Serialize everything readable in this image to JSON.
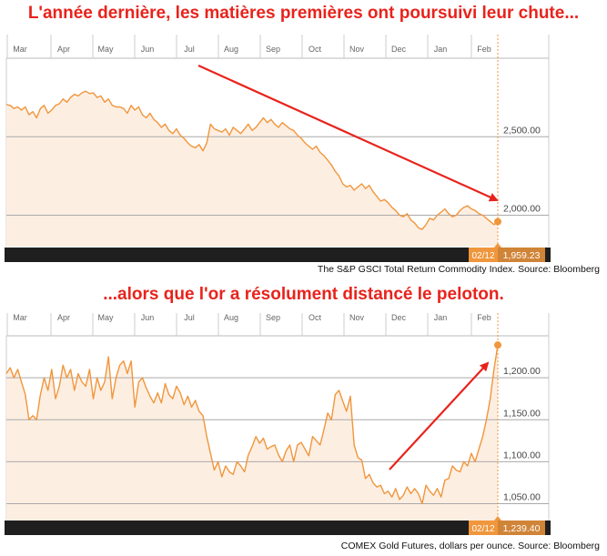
{
  "headline_top": "L'année dernière, les matières premières ont poursuivi leur chute...",
  "headline_bottom": "...alors que l'or a résolument distancé le peloton.",
  "colors": {
    "headline": "#e8231c",
    "line": "#f0963c",
    "fill": "#fdeee2",
    "arrow": "#e8231c",
    "bar": "#1f1f1f",
    "badge": "#f0963c"
  },
  "chart_data": [
    {
      "type": "area",
      "source": "The S&P GSCI Total Return Commodity Index. Source: Bloomberg",
      "x_ticks": [
        "Mar",
        "Apr",
        "May",
        "Jun",
        "Jul",
        "Aug",
        "Sep",
        "Oct",
        "Nov",
        "Dec",
        "Jan",
        "Feb"
      ],
      "y_ticks": [
        "2,500.00",
        "2,000.00"
      ],
      "y_tick_values": [
        2500,
        2000
      ],
      "ylim": [
        1800,
        3000
      ],
      "current_date": "02/12",
      "current_value": "1,959.23",
      "x": [
        0,
        2,
        4,
        6,
        8,
        10,
        12,
        14,
        16,
        18,
        20,
        22,
        24,
        26,
        28,
        30,
        32,
        34,
        36,
        38,
        40,
        42,
        44,
        46,
        48,
        50,
        52,
        54,
        56,
        58,
        60,
        62,
        64,
        66,
        68,
        70,
        72,
        74,
        76,
        78,
        80,
        82,
        84,
        86,
        88,
        90,
        92,
        94,
        96,
        98,
        100,
        102,
        104,
        106,
        108,
        110,
        112,
        114,
        116,
        118,
        120,
        122,
        124,
        126,
        128,
        130,
        132,
        134,
        136,
        138,
        140,
        142,
        144,
        146,
        148,
        150,
        152,
        154,
        156,
        158,
        160,
        162,
        164,
        166,
        168,
        170,
        172,
        174,
        176,
        178,
        180,
        182,
        184,
        186,
        188,
        190,
        192,
        194,
        196,
        198,
        200,
        202,
        204,
        206,
        208,
        210,
        212,
        214,
        216,
        218,
        220,
        222,
        224,
        226,
        228,
        230,
        232,
        234,
        236,
        238,
        240,
        242,
        244,
        246,
        248,
        250,
        252,
        254,
        256,
        258,
        260
      ],
      "values": [
        2705,
        2700,
        2680,
        2690,
        2670,
        2690,
        2640,
        2660,
        2620,
        2680,
        2700,
        2650,
        2670,
        2700,
        2710,
        2740,
        2720,
        2750,
        2770,
        2760,
        2780,
        2790,
        2775,
        2780,
        2750,
        2760,
        2720,
        2740,
        2700,
        2690,
        2690,
        2680,
        2650,
        2700,
        2670,
        2690,
        2640,
        2620,
        2650,
        2610,
        2590,
        2560,
        2580,
        2540,
        2520,
        2550,
        2510,
        2490,
        2460,
        2440,
        2430,
        2450,
        2410,
        2460,
        2580,
        2550,
        2540,
        2530,
        2550,
        2510,
        2560,
        2540,
        2520,
        2550,
        2580,
        2540,
        2560,
        2590,
        2620,
        2590,
        2610,
        2580,
        2560,
        2590,
        2570,
        2550,
        2540,
        2510,
        2490,
        2460,
        2440,
        2420,
        2440,
        2400,
        2380,
        2350,
        2320,
        2280,
        2250,
        2200,
        2180,
        2190,
        2160,
        2180,
        2200,
        2170,
        2190,
        2150,
        2120,
        2090,
        2100,
        2080,
        2050,
        2030,
        2000,
        1990,
        2010,
        1970,
        1950,
        1920,
        1910,
        1940,
        1980,
        1970,
        2000,
        2020,
        2040,
        2010,
        1990,
        2000,
        2030,
        2050,
        2060,
        2040,
        2030,
        2010,
        2000,
        1980,
        1960,
        1940,
        1959
      ]
    },
    {
      "type": "area",
      "source": "COMEX Gold Futures, dollars per ounce. Source: Bloomberg",
      "x_ticks": [
        "Mar",
        "Apr",
        "May",
        "Jun",
        "Jul",
        "Aug",
        "Sep",
        "Oct",
        "Nov",
        "Dec",
        "Jan",
        "Feb"
      ],
      "y_ticks": [
        "1,200.00",
        "1,150.00",
        "1,100.00",
        "1,050.00"
      ],
      "y_tick_values": [
        1200,
        1150,
        1100,
        1050
      ],
      "ylim": [
        1030,
        1250
      ],
      "current_date": "02/12",
      "current_value": "1,239.40",
      "x": [
        0,
        2,
        4,
        6,
        8,
        10,
        12,
        14,
        16,
        18,
        20,
        22,
        24,
        26,
        28,
        30,
        32,
        34,
        36,
        38,
        40,
        42,
        44,
        46,
        48,
        50,
        52,
        54,
        56,
        58,
        60,
        62,
        64,
        66,
        68,
        70,
        72,
        74,
        76,
        78,
        80,
        82,
        84,
        86,
        88,
        90,
        92,
        94,
        96,
        98,
        100,
        102,
        104,
        106,
        108,
        110,
        112,
        114,
        116,
        118,
        120,
        122,
        124,
        126,
        128,
        130,
        132,
        134,
        136,
        138,
        140,
        142,
        144,
        146,
        148,
        150,
        152,
        154,
        156,
        158,
        160,
        162,
        164,
        166,
        168,
        170,
        172,
        174,
        176,
        178,
        180,
        182,
        184,
        186,
        188,
        190,
        192,
        194,
        196,
        198,
        200,
        202,
        204,
        206,
        208,
        210,
        212,
        214,
        216,
        218,
        220,
        222,
        224,
        226,
        228,
        230,
        232,
        234,
        236,
        238,
        240,
        242,
        244,
        246,
        248,
        250,
        252,
        254,
        256,
        258,
        260
      ],
      "values": [
        1205,
        1212,
        1200,
        1210,
        1195,
        1180,
        1150,
        1155,
        1150,
        1180,
        1200,
        1185,
        1210,
        1175,
        1190,
        1215,
        1200,
        1210,
        1185,
        1205,
        1195,
        1190,
        1210,
        1175,
        1200,
        1185,
        1195,
        1225,
        1175,
        1200,
        1215,
        1220,
        1205,
        1220,
        1165,
        1195,
        1200,
        1188,
        1178,
        1170,
        1182,
        1170,
        1193,
        1180,
        1175,
        1190,
        1182,
        1168,
        1178,
        1165,
        1173,
        1160,
        1155,
        1130,
        1110,
        1090,
        1100,
        1082,
        1095,
        1088,
        1085,
        1100,
        1095,
        1088,
        1108,
        1118,
        1130,
        1122,
        1128,
        1115,
        1118,
        1120,
        1108,
        1100,
        1113,
        1120,
        1100,
        1120,
        1123,
        1115,
        1107,
        1130,
        1125,
        1120,
        1138,
        1158,
        1150,
        1180,
        1185,
        1172,
        1160,
        1178,
        1120,
        1105,
        1102,
        1080,
        1085,
        1075,
        1070,
        1072,
        1062,
        1065,
        1058,
        1068,
        1055,
        1060,
        1070,
        1062,
        1068,
        1062,
        1050,
        1072,
        1065,
        1060,
        1068,
        1058,
        1078,
        1080,
        1095,
        1090,
        1088,
        1100,
        1095,
        1110,
        1100,
        1115,
        1130,
        1150,
        1175,
        1210,
        1239
      ]
    }
  ]
}
